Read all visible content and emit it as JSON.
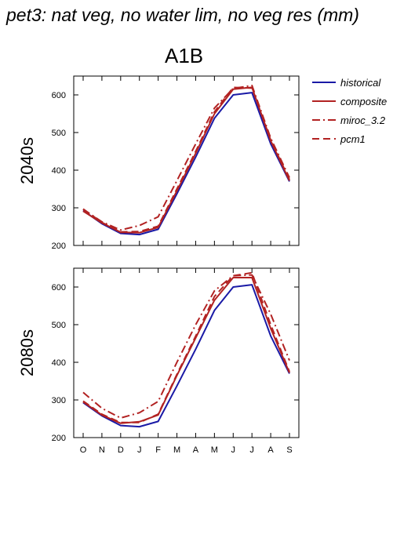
{
  "title": "pet3: nat veg, no water lim, no veg res (mm)",
  "scenario": "A1B",
  "legend": [
    {
      "name": "historical",
      "color": "#1a1aa6",
      "dash": "solid"
    },
    {
      "name": "composite",
      "color": "#b22222",
      "dash": "solid"
    },
    {
      "name": "miroc_3.2",
      "color": "#b22222",
      "dash": "dashdot"
    },
    {
      "name": "pcm1",
      "color": "#b22222",
      "dash": "dash"
    }
  ],
  "chart_data": [
    {
      "type": "line",
      "row_label": "2040s",
      "categories": [
        "O",
        "N",
        "D",
        "J",
        "F",
        "M",
        "A",
        "M",
        "J",
        "J",
        "A",
        "S"
      ],
      "ylim": [
        200,
        650
      ],
      "yticks": [
        200,
        300,
        400,
        500,
        600
      ],
      "series": [
        {
          "name": "historical",
          "values": [
            293,
            258,
            232,
            229,
            243,
            337,
            435,
            538,
            600,
            606,
            470,
            370
          ]
        },
        {
          "name": "composite",
          "values": [
            291,
            260,
            235,
            234,
            248,
            345,
            445,
            550,
            615,
            620,
            478,
            372
          ]
        },
        {
          "name": "miroc_3.2",
          "values": [
            296,
            263,
            241,
            253,
            276,
            372,
            470,
            565,
            617,
            625,
            485,
            380
          ]
        },
        {
          "name": "pcm1",
          "values": [
            297,
            261,
            236,
            237,
            251,
            350,
            450,
            555,
            620,
            618,
            480,
            375
          ]
        }
      ]
    },
    {
      "type": "line",
      "row_label": "2080s",
      "categories": [
        "O",
        "N",
        "D",
        "J",
        "F",
        "M",
        "A",
        "M",
        "J",
        "J",
        "A",
        "S"
      ],
      "ylim": [
        200,
        650
      ],
      "yticks": [
        200,
        300,
        400,
        500,
        600
      ],
      "series": [
        {
          "name": "historical",
          "values": [
            293,
            258,
            232,
            229,
            243,
            337,
            435,
            538,
            600,
            606,
            470,
            370
          ]
        },
        {
          "name": "composite",
          "values": [
            295,
            260,
            238,
            242,
            260,
            365,
            465,
            565,
            625,
            625,
            490,
            372
          ]
        },
        {
          "name": "miroc_3.2",
          "values": [
            320,
            278,
            252,
            266,
            296,
            400,
            500,
            590,
            630,
            632,
            528,
            405
          ]
        },
        {
          "name": "pcm1",
          "values": [
            297,
            262,
            240,
            240,
            262,
            368,
            470,
            575,
            630,
            638,
            500,
            375
          ]
        }
      ]
    }
  ]
}
